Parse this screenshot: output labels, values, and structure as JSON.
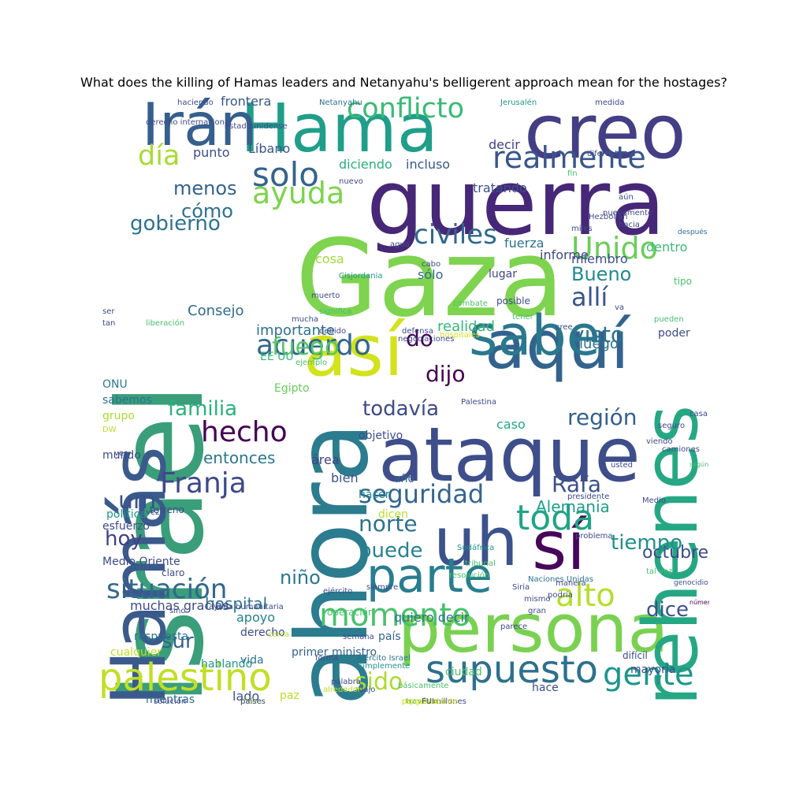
{
  "chart_data": {
    "type": "wordcloud",
    "title": "What does the killing of Hamas leaders and Netanyahu's belligerent approach mean for the hostages?",
    "words": [
      {
        "t": "Israel",
        "c": "#3a9e7a",
        "r": true
      },
      {
        "t": "Gaza",
        "c": "#7ed34f"
      },
      {
        "t": "Hamás",
        "c": "#3b5a8c",
        "r": true
      },
      {
        "t": "guerra",
        "c": "#472777"
      },
      {
        "t": "ahora",
        "c": "#2b7c8e",
        "r": true
      },
      {
        "t": "Hama",
        "c": "#1f9e89"
      },
      {
        "t": "creo",
        "c": "#433e85"
      },
      {
        "t": "ataque",
        "c": "#3d4e8a"
      },
      {
        "t": "persona",
        "c": "#7ad151"
      },
      {
        "t": "rehenes",
        "c": "#26a784",
        "r": true
      },
      {
        "t": "uh",
        "c": "#3b528b"
      },
      {
        "t": "sí",
        "c": "#46075a"
      },
      {
        "t": "así",
        "c": "#d2e21b"
      },
      {
        "t": "aquí",
        "c": "#33638d"
      },
      {
        "t": "sabe",
        "c": "#2a788e"
      },
      {
        "t": "Irán",
        "c": "#355f8d"
      },
      {
        "t": "parte",
        "c": "#287d8e"
      },
      {
        "t": "supuesto",
        "c": "#2d708e"
      },
      {
        "t": "palestino",
        "c": "#c0df25"
      },
      {
        "t": "gente",
        "c": "#1f968b"
      },
      {
        "t": "realmente",
        "c": "#39568c"
      },
      {
        "t": "conflicto",
        "c": "#3aba76"
      },
      {
        "t": "civiles",
        "c": "#31688e"
      },
      {
        "t": "Unido",
        "c": "#6ccd5a"
      },
      {
        "t": "ayuda",
        "c": "#7fd34e"
      },
      {
        "t": "solo",
        "c": "#33638d"
      },
      {
        "t": "acuerdo",
        "c": "#31668e"
      },
      {
        "t": "situación",
        "c": "#31688e"
      },
      {
        "t": "seguridad",
        "c": "#32658e"
      },
      {
        "t": "Franja",
        "c": "#3e4989"
      },
      {
        "t": "hecho",
        "c": "#440154"
      },
      {
        "t": "toda",
        "c": "#20a486"
      },
      {
        "t": "alto",
        "c": "#b5de2b"
      },
      {
        "t": "allí",
        "c": "#39558c"
      },
      {
        "t": "visto",
        "c": "#2c728e"
      },
      {
        "t": "día",
        "c": "#a8db34"
      },
      {
        "t": "región",
        "c": "#34608d"
      },
      {
        "t": "octubre",
        "c": "#3e4a89"
      },
      {
        "t": "tiempo",
        "c": "#228d8d"
      },
      {
        "t": "momento",
        "c": "#4ac16d"
      },
      {
        "t": "niño",
        "c": "#2a778e"
      },
      {
        "t": "fuego",
        "c": "#55c667"
      },
      {
        "t": "familia",
        "c": "#2ab07f"
      },
      {
        "t": "menos",
        "c": "#33638d"
      },
      {
        "t": "cómo",
        "c": "#2c718e"
      },
      {
        "t": "gobierno",
        "c": "#2c738e"
      },
      {
        "t": "después",
        "c": "#2f6b8e"
      },
      {
        "t": "todavía",
        "c": "#3e4a89"
      },
      {
        "t": "dijo",
        "c": "#440154"
      },
      {
        "t": "norte",
        "c": "#2c728e"
      },
      {
        "t": "puede",
        "c": "#26828e"
      },
      {
        "t": "um",
        "c": "#3b528b"
      },
      {
        "t": "hoy",
        "c": "#424086"
      },
      {
        "t": "Rafa",
        "c": "#3c4f8a"
      },
      {
        "t": "Bueno",
        "c": "#238a8d"
      },
      {
        "t": "dice",
        "c": "#3b528b"
      },
      {
        "t": "sur",
        "c": "#33638d"
      },
      {
        "t": "sido",
        "c": "#addc30"
      },
      {
        "t": "do",
        "c": "#440154"
      },
      {
        "t": "entonces",
        "c": "#2a788e"
      },
      {
        "t": "hospital",
        "c": "#2c728e"
      },
      {
        "t": "Alemania",
        "c": "#1f9e89"
      },
      {
        "t": "luego",
        "c": "#2c738e"
      },
      {
        "t": "importante",
        "c": "#2c728e"
      },
      {
        "t": "realidad",
        "c": "#35b779"
      },
      {
        "t": "Consejo",
        "c": "#2f6c8e"
      },
      {
        "t": "frontera",
        "c": "#39568c"
      },
      {
        "t": "Líbano",
        "c": "#3b528b"
      },
      {
        "t": "punto",
        "c": "#3d4d8a"
      },
      {
        "t": "diciendo",
        "c": "#29af7f"
      },
      {
        "t": "incluso",
        "c": "#39568c"
      },
      {
        "t": "decir",
        "c": "#424086"
      },
      {
        "t": "informe",
        "c": "#3e4989"
      },
      {
        "t": "dentro",
        "c": "#3aba76"
      },
      {
        "t": "fuerza",
        "c": "#2c728e"
      },
      {
        "t": "miembro",
        "c": "#3d4d8a"
      },
      {
        "t": "tratando",
        "c": "#3c508b"
      },
      {
        "t": "cosa",
        "c": "#a2da37"
      },
      {
        "t": "sólo",
        "c": "#31688e"
      },
      {
        "t": "lugar",
        "c": "#3f4788"
      },
      {
        "t": "caso",
        "c": "#22a785"
      },
      {
        "t": "EE UU",
        "c": "#34b679"
      },
      {
        "t": "Egipto",
        "c": "#67cc5c"
      },
      {
        "t": "objetivo",
        "c": "#3d4d8a"
      },
      {
        "t": "área",
        "c": "#424086"
      },
      {
        "t": "bien",
        "c": "#3b528b"
      },
      {
        "t": "hacer",
        "c": "#238a8d"
      },
      {
        "t": "dicen",
        "c": "#b8de29"
      },
      {
        "t": "año",
        "c": "#33638d"
      },
      {
        "t": "ciudad",
        "c": "#4ac16d"
      },
      {
        "t": "lado",
        "c": "#3b528b"
      },
      {
        "t": "paz",
        "c": "#b8de29"
      },
      {
        "t": "mientras",
        "c": "#31688e"
      },
      {
        "t": "vida",
        "c": "#2c728e"
      },
      {
        "t": "hablando",
        "c": "#1f968b"
      },
      {
        "t": "apoyo",
        "c": "#26828e"
      },
      {
        "t": "derecho",
        "c": "#3e4a89"
      },
      {
        "t": "quiero decir",
        "c": "#2c728e"
      },
      {
        "t": "país",
        "c": "#33638d"
      },
      {
        "t": "primer ministro",
        "c": "#33638d"
      },
      {
        "t": "hace",
        "c": "#3e4a89"
      },
      {
        "t": "mayoría",
        "c": "#3e4a89"
      },
      {
        "t": "difícil",
        "c": "#3e4a89"
      },
      {
        "t": "Medio Oriente",
        "c": "#3e4a89"
      },
      {
        "t": "esfuerzo",
        "c": "#3e4a89"
      },
      {
        "t": "política",
        "c": "#1f968b"
      },
      {
        "t": "mundo",
        "c": "#3e4a89"
      },
      {
        "t": "ONU",
        "c": "#287d8e"
      },
      {
        "t": "sabemos",
        "c": "#2c728e"
      },
      {
        "t": "grupo",
        "c": "#a8db34"
      },
      {
        "t": "muchas gracias",
        "c": "#3e4a89"
      },
      {
        "t": "respuesta",
        "c": "#2c728e"
      },
      {
        "t": "cualquier",
        "c": "#c0df25"
      },
      {
        "t": "casa",
        "c": "#3e4a89"
      },
      {
        "t": "tipo",
        "c": "#4ac16d"
      },
      {
        "t": "poder",
        "c": "#3e4a89"
      },
      {
        "t": "posible",
        "c": "#3e4a89"
      },
      {
        "t": "haciendo",
        "c": "#3e4a89"
      },
      {
        "t": "Jerusalén",
        "c": "#1f968b"
      },
      {
        "t": "medida",
        "c": "#3e4a89"
      },
      {
        "t": "Netanyahu",
        "c": "#2c728e"
      },
      {
        "t": "estadounidense",
        "c": "#3e4a89"
      },
      {
        "t": "derecho internacional",
        "c": "#3e4a89"
      },
      {
        "t": "nuevo",
        "c": "#3e4a89"
      },
      {
        "t": "nuevamente",
        "c": "#3e4a89"
      },
      {
        "t": "Hezbollah",
        "c": "#3e4a89"
      },
      {
        "t": "miles",
        "c": "#3e4a89"
      },
      {
        "t": "combate",
        "c": "#4ac16d"
      },
      {
        "t": "agua",
        "c": "#3e4a89"
      },
      {
        "t": "cabo",
        "c": "#3e4a89"
      },
      {
        "t": "Cisjordania",
        "c": "#1f968b"
      },
      {
        "t": "liberación",
        "c": "#4ac16d"
      },
      {
        "t": "defensa",
        "c": "#3e4a89"
      },
      {
        "t": "hospitales",
        "c": "#d2e21b"
      },
      {
        "t": "Palestina",
        "c": "#3e4a89"
      },
      {
        "t": "negociaciones",
        "c": "#3e4a89"
      },
      {
        "t": "seguro",
        "c": "#3e4a89"
      },
      {
        "t": "usted",
        "c": "#3e4a89"
      },
      {
        "t": "resolución",
        "c": "#4ac16d"
      },
      {
        "t": "Sudáfrica",
        "c": "#1f968b"
      },
      {
        "t": "genocidio",
        "c": "#3e4a89"
      },
      {
        "t": "ejército",
        "c": "#3e4a89"
      },
      {
        "t": "tribunal",
        "c": "#4ac16d"
      },
      {
        "t": "Siria",
        "c": "#3e4a89"
      },
      {
        "t": "Naciones Unidas",
        "c": "#2c728e"
      },
      {
        "t": "presidente",
        "c": "#3e4a89"
      },
      {
        "t": "problema",
        "c": "#3e4a89"
      },
      {
        "t": "tal vez",
        "c": "#4ac16d"
      },
      {
        "t": "número",
        "c": "#440154"
      },
      {
        "t": "claro",
        "c": "#3e4a89"
      },
      {
        "t": "terreno",
        "c": "#3e4a89"
      },
      {
        "t": "ayuda humanitaria",
        "c": "#3e4a89"
      },
      {
        "t": "siempre",
        "c": "#3e4a89"
      },
      {
        "t": "operación",
        "c": "#4ac16d"
      },
      {
        "t": "ejército Israel",
        "c": "#2c728e"
      },
      {
        "t": "simplemente",
        "c": "#1f968b"
      },
      {
        "t": "millones",
        "c": "#3e4a89"
      },
      {
        "t": "bajo",
        "c": "#3e4a89"
      },
      {
        "t": "palabra",
        "c": "#3e4a89"
      },
      {
        "t": "forma",
        "c": "#3e4a89"
      },
      {
        "t": "vez",
        "c": "#3e4a89"
      },
      {
        "t": "arma",
        "c": "#3e4a89"
      },
      {
        "t": "sino",
        "c": "#3e4a89"
      },
      {
        "t": "cerca",
        "c": "#b8de29"
      },
      {
        "t": "semana",
        "c": "#3e4a89"
      },
      {
        "t": "básicamente",
        "c": "#4ac16d"
      },
      {
        "t": "través",
        "c": "#1f968b"
      },
      {
        "t": "alrededor",
        "c": "#b8de29"
      },
      {
        "t": "manera",
        "c": "#3e4a89"
      },
      {
        "t": "podría",
        "c": "#3e4a89"
      },
      {
        "t": "mismo",
        "c": "#3e4a89"
      },
      {
        "t": "gran",
        "c": "#3e4a89"
      },
      {
        "t": "parece",
        "c": "#3e4a89"
      },
      {
        "t": "Medio",
        "c": "#3e4a89"
      },
      {
        "t": "según",
        "c": "#4ac16d"
      },
      {
        "t": "viendo",
        "c": "#3e4a89"
      },
      {
        "t": "camiones",
        "c": "#3e4a89"
      },
      {
        "t": "pueden",
        "c": "#4ac16d"
      },
      {
        "t": "cree",
        "c": "#3e4a89"
      },
      {
        "t": "tener",
        "c": "#4ac16d"
      },
      {
        "t": "mucha",
        "c": "#3e4a89"
      },
      {
        "t": "ejemplo",
        "c": "#4ac16d"
      },
      {
        "t": "debido",
        "c": "#3e4a89"
      },
      {
        "t": "muerto",
        "c": "#3e4a89"
      },
      {
        "t": "significa",
        "c": "#4ac16d"
      },
      {
        "t": "tan",
        "c": "#3e4a89"
      },
      {
        "t": "ser",
        "c": "#3e4a89"
      },
      {
        "t": "hacia",
        "c": "#3e4a89"
      },
      {
        "t": "aún",
        "c": "#3e4a89"
      },
      {
        "t": "diferente",
        "c": "#3e4a89"
      },
      {
        "t": "fin",
        "c": "#4ac16d"
      },
      {
        "t": "va",
        "c": "#3e4a89"
      },
      {
        "t": "DW",
        "c": "#b8de29"
      },
      {
        "t": "ver",
        "c": "#3e4a89"
      },
      {
        "t": "solución",
        "c": "#3e4a89"
      },
      {
        "t": "dicho",
        "c": "#b8de29"
      },
      {
        "t": "países",
        "c": "#3e4a89"
      },
      {
        "t": "representante",
        "c": "#d2e21b"
      },
      {
        "t": "pregunta",
        "c": "#d2e21b"
      },
      {
        "t": "FUI",
        "c": "#3e4a89"
      }
    ]
  }
}
